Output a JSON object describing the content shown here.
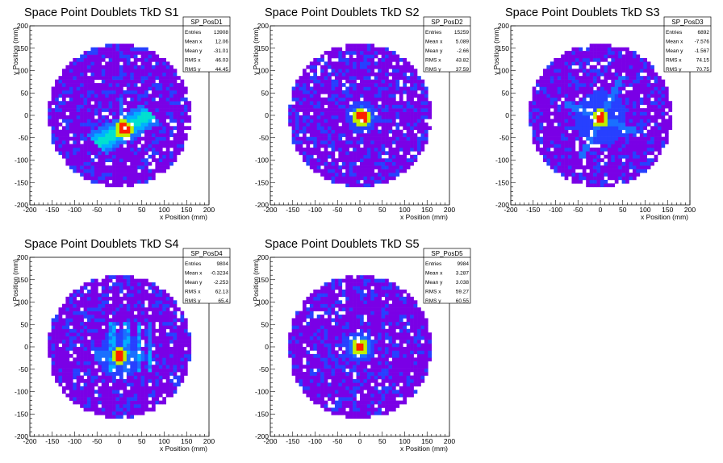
{
  "colors": {
    "background": "#7a00e6",
    "palette": [
      "#5a10ff",
      "#2740ff",
      "#1a70ff",
      "#00b0ff",
      "#00e0d0",
      "#40f060",
      "#c0f000",
      "#ffb000",
      "#ff2000"
    ]
  },
  "chart_data": [
    {
      "type": "heatmap",
      "title": "Space Point Doublets TkD S1",
      "xlabel": "x Position (mm)",
      "ylabel": "y Position (mm)",
      "xlim": [
        -200,
        200
      ],
      "ylim": [
        -200,
        200
      ],
      "xticks": [
        "-200",
        "-150",
        "-100",
        "-50",
        "0",
        "50",
        "100",
        "150",
        "200"
      ],
      "yticks": [
        "200",
        "150",
        "100",
        "50",
        "0",
        "-50",
        "-100",
        "-150",
        "-200"
      ],
      "stats": {
        "name": "SP_PosD1",
        "rows": [
          [
            "Entries",
            "13908"
          ],
          [
            "Mean x",
            "12.06"
          ],
          [
            "Mean y",
            "-31.01"
          ],
          [
            "RMS x",
            "46.03"
          ],
          [
            "RMS y",
            "44.45"
          ]
        ]
      },
      "hotspot": [
        10,
        -30
      ],
      "features": "band"
    },
    {
      "type": "heatmap",
      "title": "Space Point Doublets TkD S2",
      "xlabel": "x Position (mm)",
      "ylabel": "y Position (mm)",
      "xlim": [
        -200,
        200
      ],
      "ylim": [
        -200,
        200
      ],
      "xticks": [
        "-200",
        "-150",
        "-100",
        "-50",
        "0",
        "50",
        "100",
        "150",
        "200"
      ],
      "yticks": [
        "200",
        "150",
        "100",
        "50",
        "0",
        "-50",
        "-100",
        "-150",
        "-200"
      ],
      "stats": {
        "name": "SP_PosD2",
        "rows": [
          [
            "Entries",
            "15259"
          ],
          [
            "Mean x",
            "5.089"
          ],
          [
            "Mean y",
            "-2.66"
          ],
          [
            "RMS x",
            "43.82"
          ],
          [
            "RMS y",
            "37.59"
          ]
        ]
      },
      "hotspot": [
        5,
        -3
      ],
      "features": "blob"
    },
    {
      "type": "heatmap",
      "title": "Space Point Doublets TkD S3",
      "xlabel": "x Position (mm)",
      "ylabel": "y Position (mm)",
      "xlim": [
        -200,
        200
      ],
      "ylim": [
        -200,
        200
      ],
      "xticks": [
        "-200",
        "-150",
        "-100",
        "-50",
        "0",
        "50",
        "100",
        "150",
        "200"
      ],
      "yticks": [
        "200",
        "150",
        "100",
        "50",
        "0",
        "-50",
        "-100",
        "-150",
        "-200"
      ],
      "stats": {
        "name": "SP_PosD3",
        "rows": [
          [
            "Entries",
            "6892"
          ],
          [
            "Mean x",
            "-7.576"
          ],
          [
            "Mean y",
            "-1.567"
          ],
          [
            "RMS x",
            "74.15"
          ],
          [
            "RMS y",
            "70.75"
          ]
        ]
      },
      "hotspot": [
        0,
        -5
      ],
      "features": "star"
    },
    {
      "type": "heatmap",
      "title": "Space Point Doublets TkD S4",
      "xlabel": "x Position (mm)",
      "ylabel": "y Position (mm)",
      "xlim": [
        -200,
        200
      ],
      "ylim": [
        -200,
        200
      ],
      "xticks": [
        "-200",
        "-150",
        "-100",
        "-50",
        "0",
        "50",
        "100",
        "150",
        "200"
      ],
      "yticks": [
        "200",
        "150",
        "100",
        "50",
        "0",
        "-50",
        "-100",
        "-150",
        "-200"
      ],
      "stats": {
        "name": "SP_PosD4",
        "rows": [
          [
            "Entries",
            "9804"
          ],
          [
            "Mean x",
            "-0.3234"
          ],
          [
            "Mean y",
            "-2.253"
          ],
          [
            "RMS x",
            "62.13"
          ],
          [
            "RMS y",
            "65.4"
          ]
        ]
      },
      "hotspot": [
        0,
        -20
      ],
      "features": "stripes"
    },
    {
      "type": "heatmap",
      "title": "Space Point Doublets TkD S5",
      "xlabel": "x Position (mm)",
      "ylabel": "y Position (mm)",
      "xlim": [
        -200,
        200
      ],
      "ylim": [
        -200,
        200
      ],
      "xticks": [
        "-200",
        "-150",
        "-100",
        "-50",
        "0",
        "50",
        "100",
        "150",
        "200"
      ],
      "yticks": [
        "200",
        "150",
        "100",
        "50",
        "0",
        "-50",
        "-100",
        "-150",
        "-200"
      ],
      "stats": {
        "name": "SP_PosD5",
        "rows": [
          [
            "Entries",
            "9984"
          ],
          [
            "Mean x",
            "3.287"
          ],
          [
            "Mean y",
            "3.038"
          ],
          [
            "RMS x",
            "59.27"
          ],
          [
            "RMS y",
            "60.55"
          ]
        ]
      },
      "hotspot": [
        0,
        0
      ],
      "features": "blob"
    }
  ]
}
